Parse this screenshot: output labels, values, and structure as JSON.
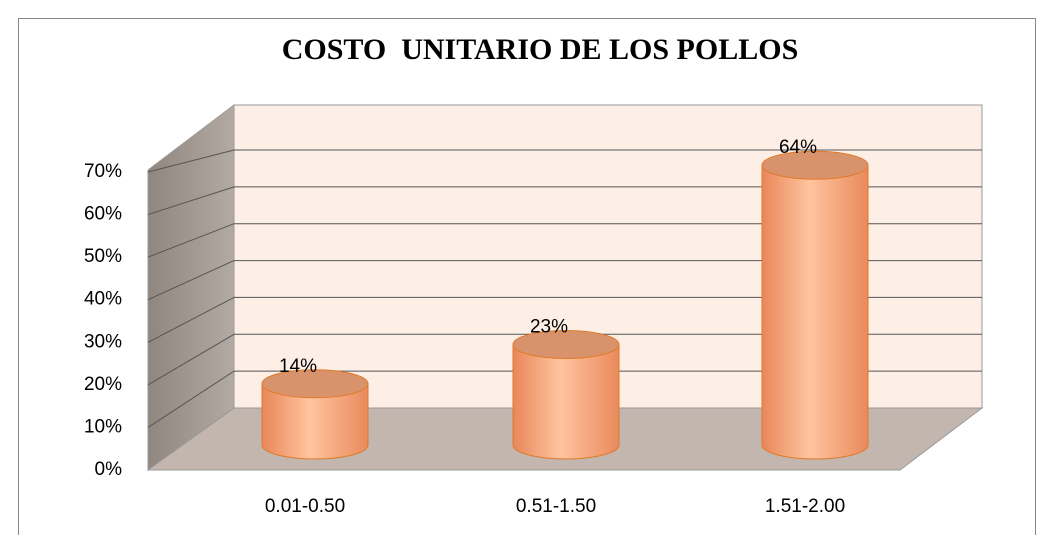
{
  "chart_data": {
    "type": "bar",
    "title": "COSTO  UNITARIO DE LOS POLLOS",
    "categories": [
      "0.01-0.50",
      "0.51-1.50",
      "1.51-2.00"
    ],
    "values": [
      14,
      23,
      64
    ],
    "value_labels": [
      "14%",
      "23%",
      "64%"
    ],
    "color": "#f8ad82",
    "ylim": [
      0,
      70
    ],
    "yticks": [
      {
        "value": 0,
        "label": "0%"
      },
      {
        "value": 10,
        "label": "10%"
      },
      {
        "value": 20,
        "label": "20%"
      },
      {
        "value": 30,
        "label": "30%"
      },
      {
        "value": 40,
        "label": "40%"
      },
      {
        "value": 50,
        "label": "50%"
      },
      {
        "value": 60,
        "label": "60%"
      },
      {
        "value": 70,
        "label": "70%"
      }
    ],
    "grid": true
  }
}
